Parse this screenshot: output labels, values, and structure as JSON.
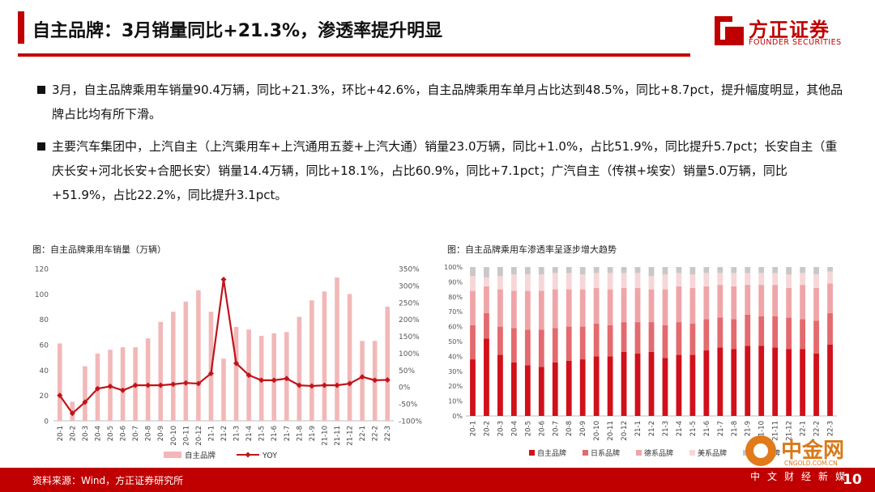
{
  "header": {
    "title": "自主品牌：3月销量同比+21.3%，渗透率提升明显",
    "logo_cn": "方正证券",
    "logo_en": "FOUNDER SECURITIES"
  },
  "bullets": [
    "3月，自主品牌乘用车销量90.4万辆，同比+21.3%，环比+42.6%，自主品牌乘用车单月占比达到48.5%，同比+8.7pct，提升幅度明显，其他品牌占比均有所下滑。",
    "主要汽车集团中，上汽自主（上汽乘用车+上汽通用五菱+上汽大通）销量23.0万辆，同比+1.0%，占比51.9%，同比提升5.7pct；长安自主（重庆长安+河北长安+合肥长安）销量14.4万辆，同比+18.1%，占比60.9%，同比+7.1pct；广汽自主（传祺+埃安）销量5.0万辆，同比+51.9%，占比22.2%，同比提升3.1pct。"
  ],
  "chart1": {
    "caption": "图：自主品牌乘用车销量（万辆）",
    "legend_bar": "自主品牌",
    "legend_line": "YOY",
    "colors": {
      "bar": "#f2b8b8",
      "line": "#c0141a"
    }
  },
  "chart2": {
    "caption": "图：自主品牌乘用车渗透率呈逐步增大趋势",
    "colors": {
      "zz": "#d0101a",
      "rx": "#e36a6e",
      "dx": "#efa5a8",
      "mx": "#f7d6d8",
      "qt": "#c8c8c8"
    }
  },
  "chart_data": [
    {
      "type": "bar",
      "title": "图：自主品牌乘用车销量（万辆）",
      "categories": [
        "20-1",
        "20-2",
        "20-3",
        "20-4",
        "20-5",
        "20-6",
        "20-7",
        "20-8",
        "20-9",
        "20-10",
        "20-11",
        "20-12",
        "21-1",
        "21-2",
        "21-3",
        "21-4",
        "21-5",
        "21-6",
        "21-7",
        "21-8",
        "21-9",
        "21-10",
        "21-11",
        "21-12",
        "22-1",
        "22-2",
        "22-3"
      ],
      "ylim": [
        0,
        120
      ],
      "y2lim": [
        -100,
        350
      ],
      "yticks": [
        "0",
        "20",
        "40",
        "60",
        "80",
        "100",
        "120"
      ],
      "y2ticks": [
        "-100%",
        "-50%",
        "0%",
        "50%",
        "100%",
        "150%",
        "200%",
        "250%",
        "300%",
        "350%"
      ],
      "series": [
        {
          "name": "自主品牌",
          "type": "bar",
          "axis": "left",
          "values": [
            61,
            15,
            43,
            53,
            56,
            58,
            58,
            65,
            78,
            86,
            94,
            103,
            86,
            49,
            74,
            72,
            67,
            69,
            70,
            82,
            95,
            102,
            113,
            100,
            63,
            63,
            90
          ]
        },
        {
          "name": "YOY",
          "type": "line",
          "axis": "right",
          "values": [
            -25,
            -78,
            -45,
            -5,
            2,
            -10,
            5,
            5,
            5,
            8,
            12,
            10,
            40,
            318,
            70,
            35,
            20,
            20,
            25,
            5,
            3,
            5,
            5,
            10,
            30,
            20,
            21
          ]
        }
      ]
    },
    {
      "type": "bar",
      "stacked": true,
      "title": "图：自主品牌乘用车渗透率呈逐步增大趋势",
      "categories": [
        "20-1",
        "20-2",
        "20-3",
        "20-4",
        "20-5",
        "20-6",
        "20-7",
        "20-8",
        "20-9",
        "20-10",
        "20-11",
        "20-12",
        "21-1",
        "21-2",
        "21-3",
        "21-4",
        "21-5",
        "21-6",
        "21-7",
        "21-8",
        "21-9",
        "21-10",
        "21-11",
        "21-12",
        "22-1",
        "22-2",
        "22-3"
      ],
      "ylim": [
        0,
        100
      ],
      "yticks": [
        "0%",
        "10%",
        "20%",
        "30%",
        "40%",
        "50%",
        "60%",
        "70%",
        "80%",
        "90%",
        "100%"
      ],
      "series": [
        {
          "name": "自主品牌",
          "values": [
            38,
            52,
            41,
            36,
            34,
            33,
            36,
            37,
            38,
            40,
            40,
            43,
            42,
            43,
            39,
            41,
            41,
            44,
            46,
            45,
            47,
            47,
            46,
            45,
            45,
            42,
            48
          ]
        },
        {
          "name": "日系品牌",
          "values": [
            23,
            17,
            19,
            23,
            24,
            25,
            23,
            23,
            22,
            22,
            21,
            20,
            21,
            20,
            22,
            22,
            21,
            21,
            20,
            20,
            21,
            20,
            21,
            21,
            20,
            22,
            21
          ]
        },
        {
          "name": "德系品牌",
          "values": [
            23,
            18,
            25,
            25,
            26,
            26,
            26,
            25,
            25,
            24,
            24,
            23,
            23,
            22,
            24,
            24,
            24,
            22,
            22,
            22,
            20,
            21,
            21,
            20,
            23,
            22,
            20
          ]
        },
        {
          "name": "美系品牌",
          "values": [
            10,
            6,
            9,
            11,
            11,
            11,
            11,
            11,
            10,
            10,
            11,
            10,
            10,
            9,
            10,
            9,
            9,
            9,
            8,
            9,
            8,
            8,
            8,
            9,
            8,
            9,
            8
          ]
        },
        {
          "name": "其他品牌",
          "values": [
            6,
            7,
            6,
            5,
            5,
            5,
            4,
            4,
            5,
            4,
            4,
            4,
            4,
            6,
            5,
            4,
            5,
            4,
            4,
            4,
            4,
            4,
            4,
            5,
            4,
            5,
            3
          ]
        }
      ]
    }
  ],
  "footer": {
    "source": "资料来源：Wind，方正证券研究所",
    "page": "10",
    "watermark_cn": "中金网",
    "watermark_url": "CNGOLD.COM.CN",
    "watermark_sub": "中文财经新媒"
  }
}
